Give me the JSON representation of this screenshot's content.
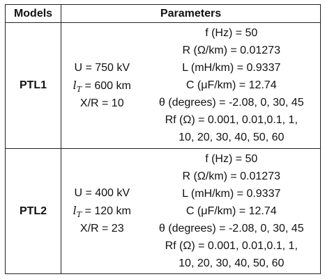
{
  "header": {
    "models_label": "Models",
    "parameters_label": "Parameters"
  },
  "rows": [
    {
      "model": "PTL1",
      "specs": [
        {
          "prefix": "",
          "text": "U = 750 kV"
        },
        {
          "prefix": "lT",
          "text": " = 600 km"
        },
        {
          "prefix": "",
          "text": "X/R = 10"
        }
      ],
      "params": [
        "f (Hz) = 50",
        "R (Ω/km) = 0.01273",
        "L (mH/km) = 0.9337",
        "C (μF/km) = 12.74",
        "θ (degrees) = -2.08, 0, 30, 45",
        "Rf (Ω) = 0.001, 0.01,0.1, 1,",
        "10, 20, 30, 40, 50, 60"
      ]
    },
    {
      "model": "PTL2",
      "specs": [
        {
          "prefix": "",
          "text": "U = 400 kV"
        },
        {
          "prefix": "lT",
          "text": " = 120 km"
        },
        {
          "prefix": "",
          "text": "X/R = 23"
        }
      ],
      "params": [
        "f (Hz) = 50",
        "R (Ω/km) = 0.01273",
        "L (mH/km) = 0.9337",
        "C (μF/km) = 12.74",
        "θ (degrees) = -2.08, 0, 30, 45",
        "Rf (Ω) = 0.001, 0.01,0.1, 1,",
        "10, 20, 30, 40, 50, 60"
      ]
    }
  ]
}
